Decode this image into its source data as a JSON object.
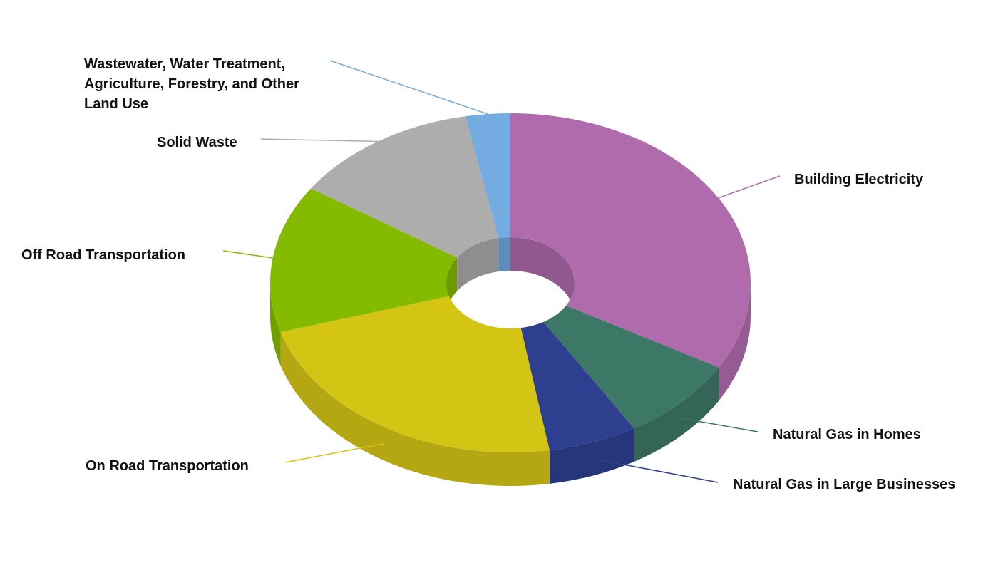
{
  "chart_data": {
    "type": "donut",
    "categories": [
      "Building Electricity",
      "Natural Gas in Homes",
      "Natural Gas in Large Businesses",
      "On Road Transportation",
      "Off Road Transportation",
      "Solid Waste",
      "Wastewater, Water Treatment, Agriculture, Forestry, and Other Land Use"
    ],
    "values": [
      33.3,
      8.1,
      6.0,
      22.9,
      14.1,
      12.6,
      3.0
    ],
    "colors": [
      "#b06bad",
      "#3d7766",
      "#2e3f8f",
      "#d4c414",
      "#84bb00",
      "#adadad",
      "#74abe0"
    ]
  }
}
